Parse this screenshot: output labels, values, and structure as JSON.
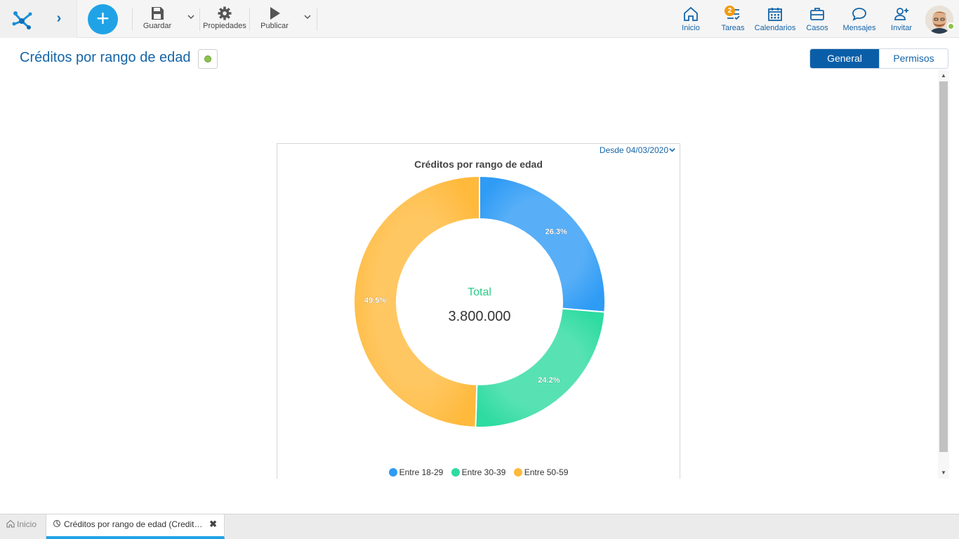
{
  "toolbar": {
    "save_label": "Guardar",
    "properties_label": "Propiedades",
    "publish_label": "Publicar"
  },
  "nav": {
    "home_label": "Inicio",
    "tasks_label": "Tareas",
    "tasks_badge": "2",
    "calendars_label": "Calendarios",
    "cases_label": "Casos",
    "messages_label": "Mensajes",
    "invite_label": "Invitar"
  },
  "page": {
    "title": "Créditos por rango de edad",
    "tabs": [
      "General",
      "Permisos"
    ]
  },
  "chart": {
    "date_filter": "Desde 04/03/2020",
    "center_label": "Total",
    "center_value": "3.800.000"
  },
  "chart_data": {
    "type": "pie",
    "title": "Créditos por rango de edad",
    "categories": [
      "Entre 18-29",
      "Entre 30-39",
      "Entre 50-59"
    ],
    "values": [
      26.3,
      24.2,
      49.5
    ],
    "value_labels": [
      "26.3%",
      "24.2%",
      "49.5%"
    ],
    "colors": [
      "#2e9bf5",
      "#2edba0",
      "#ffb93b"
    ],
    "legend_position": "bottom",
    "donut": true
  },
  "bottom_tabs": {
    "home_label": "Inicio",
    "active_label": "Créditos por rango de edad (Credit…"
  }
}
